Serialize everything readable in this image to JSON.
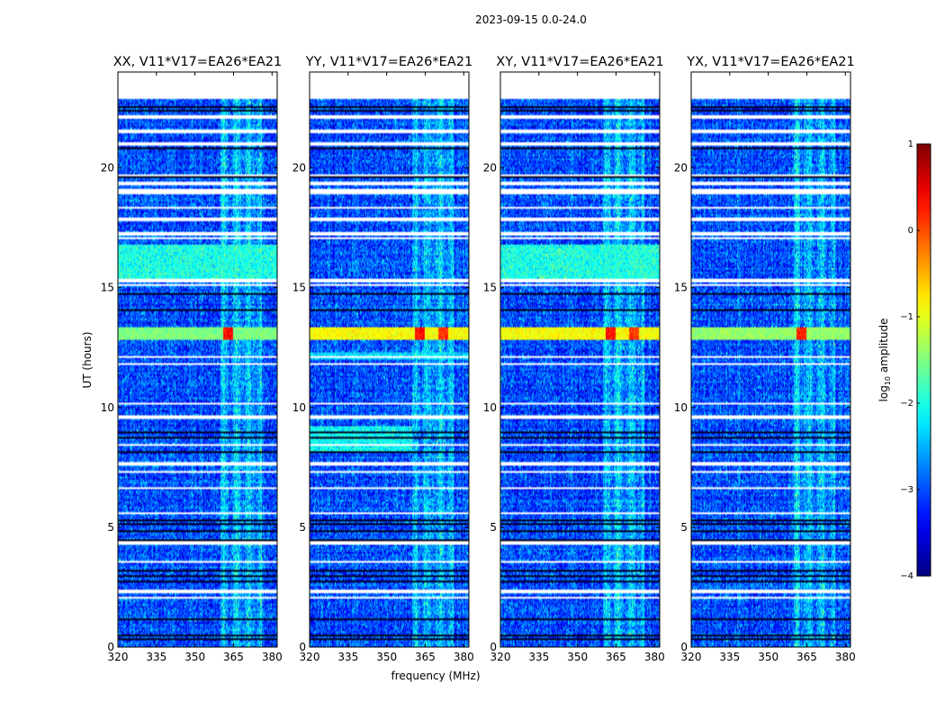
{
  "chart_data": {
    "type": "heatmap",
    "suptitle": "2023-09-15 0.0-24.0",
    "xlabel": "frequency (MHz)",
    "ylabel": "UT (hours)",
    "xlim": [
      320,
      382
    ],
    "ylim": [
      0,
      24
    ],
    "x_ticks": [
      320,
      335,
      350,
      365,
      380
    ],
    "y_ticks": [
      0,
      5,
      10,
      15,
      20
    ],
    "colormap": "jet",
    "colorbar": {
      "label_prefix": "log",
      "label_sub": "10",
      "label_suffix": " amplitude",
      "range": [
        -4,
        1
      ],
      "ticks": [
        1,
        0,
        -1,
        -2,
        -3,
        -4
      ],
      "tick_labels": [
        "1",
        "0",
        "−1",
        "−2",
        "−3",
        "−4"
      ]
    },
    "data_time_range": [
      0.0,
      22.9
    ],
    "panels": [
      {
        "title": "XX, V11*V17=EA26*EA21",
        "base_level": -3.0,
        "rfi_band": [
          360,
          376
        ],
        "bright_band_time": [
          12.85,
          13.35
        ],
        "bright_band_level": -1.5,
        "hot_spot": [
          [
            361,
            365,
            0.3
          ]
        ],
        "extra_regions": [
          {
            "t": [
              15.4,
              16.8
            ],
            "f": [
              320,
              382
            ],
            "level": -2.0
          }
        ]
      },
      {
        "title": "YY, V11*V17=EA26*EA21",
        "base_level": -3.0,
        "rfi_band": [
          360,
          376
        ],
        "bright_band_time": [
          12.85,
          13.35
        ],
        "bright_band_level": -0.9,
        "hot_spot": [
          [
            361,
            365,
            0.3
          ],
          [
            370,
            374,
            0.1
          ]
        ],
        "extra_regions": [
          {
            "t": [
              8.2,
              9.2
            ],
            "f": [
              320,
              360
            ],
            "level": -2.1
          },
          {
            "t": [
              12.0,
              12.3
            ],
            "f": [
              320,
              382
            ],
            "level": -2.3
          }
        ]
      },
      {
        "title": "XY, V11*V17=EA26*EA21",
        "base_level": -3.0,
        "rfi_band": [
          360,
          376
        ],
        "bright_band_time": [
          12.85,
          13.35
        ],
        "bright_band_level": -0.9,
        "hot_spot": [
          [
            361,
            365,
            0.3
          ],
          [
            370,
            374,
            0.1
          ]
        ],
        "extra_regions": [
          {
            "t": [
              15.4,
              16.8
            ],
            "f": [
              320,
              382
            ],
            "level": -2.0
          }
        ]
      },
      {
        "title": "YX, V11*V17=EA26*EA21",
        "base_level": -3.0,
        "rfi_band": [
          360,
          376
        ],
        "bright_band_time": [
          12.85,
          13.35
        ],
        "bright_band_level": -1.4,
        "hot_spot": [
          [
            361,
            365,
            0.2
          ]
        ],
        "extra_regions": []
      }
    ],
    "flagged_gaps_hours": [
      [
        22.05,
        22.2
      ],
      [
        21.45,
        21.6
      ],
      [
        20.9,
        21.1
      ],
      [
        19.6,
        19.75
      ],
      [
        19.3,
        19.45
      ],
      [
        18.9,
        19.1
      ],
      [
        18.3,
        18.4
      ],
      [
        17.75,
        17.9
      ],
      [
        17.2,
        17.3
      ],
      [
        17.0,
        17.1
      ],
      [
        15.25,
        15.35
      ],
      [
        15.05,
        15.15
      ],
      [
        12.05,
        12.12
      ],
      [
        11.75,
        11.85
      ],
      [
        10.1,
        10.2
      ],
      [
        9.55,
        9.65
      ],
      [
        8.4,
        8.5
      ],
      [
        7.55,
        7.75
      ],
      [
        7.25,
        7.35
      ],
      [
        6.6,
        6.7
      ],
      [
        5.55,
        5.65
      ],
      [
        4.3,
        4.4
      ],
      [
        3.5,
        3.6
      ],
      [
        2.25,
        2.4
      ],
      [
        2.0,
        2.1
      ]
    ],
    "dark_lines_hours": [
      22.4,
      22.6,
      20.85,
      19.65,
      14.8,
      14.1,
      9.0,
      8.8,
      8.2,
      5.3,
      5.2,
      4.85,
      4.5,
      3.2,
      3.0,
      2.8,
      1.2,
      0.55,
      0.4
    ]
  }
}
